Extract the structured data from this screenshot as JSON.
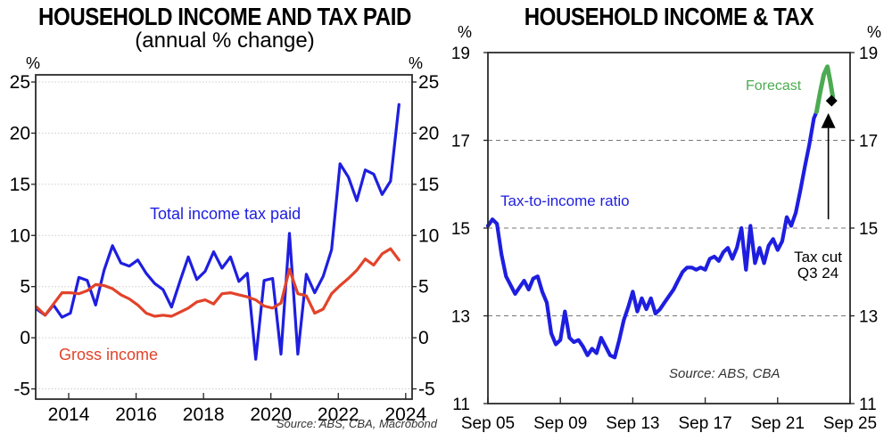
{
  "chart_data": [
    {
      "type": "line",
      "title": "HOUSEHOLD INCOME AND TAX PAID",
      "subtitle": "(annual % change)",
      "unit_label": "%",
      "source": "Source: ABS, CBA, Macrobond",
      "grid": "dotted",
      "legend_position": "in-plot-labels",
      "xlim": [
        2013.02,
        2024.19
      ],
      "ylim": [
        -6,
        25.7
      ],
      "yticks": [
        25,
        20,
        15,
        10,
        5,
        0,
        -5
      ],
      "grid_values": [
        25,
        20,
        15,
        10,
        5,
        0,
        -5
      ],
      "xticks": {
        "values": [
          2014,
          2016,
          2018,
          2020,
          2022,
          2024
        ],
        "labels": [
          "2014",
          "2016",
          "2018",
          "2020",
          "2022",
          "2024"
        ]
      },
      "x": [
        2013.05,
        2013.3,
        2013.55,
        2013.8,
        2014.05,
        2014.3,
        2014.55,
        2014.8,
        2015.05,
        2015.3,
        2015.55,
        2015.8,
        2016.05,
        2016.3,
        2016.55,
        2016.8,
        2017.05,
        2017.3,
        2017.55,
        2017.8,
        2018.05,
        2018.3,
        2018.55,
        2018.8,
        2019.05,
        2019.3,
        2019.55,
        2019.8,
        2020.05,
        2020.3,
        2020.55,
        2020.8,
        2021.05,
        2021.3,
        2021.55,
        2021.8,
        2022.05,
        2022.3,
        2022.55,
        2022.8,
        2023.05,
        2023.3,
        2023.55,
        2023.8
      ],
      "series": [
        {
          "name": "Total income tax paid",
          "color": "#1e1ee0",
          "values": [
            2.8,
            2.2,
            3.2,
            2.0,
            2.4,
            5.9,
            5.6,
            3.2,
            6.6,
            9.0,
            7.3,
            7.0,
            7.6,
            6.3,
            5.3,
            4.7,
            3.0,
            5.5,
            7.9,
            5.7,
            6.5,
            8.4,
            6.8,
            7.9,
            5.5,
            6.3,
            -2.1,
            5.6,
            5.8,
            -1.6,
            10.2,
            -1.6,
            6.2,
            4.4,
            6.0,
            8.6,
            17.0,
            15.7,
            13.4,
            16.4,
            16.0,
            14.0,
            15.3,
            22.8
          ]
        },
        {
          "name": "Gross income",
          "color": "#e2432a",
          "values": [
            3.0,
            2.2,
            3.3,
            4.4,
            4.4,
            4.3,
            4.6,
            5.2,
            5.1,
            4.8,
            4.2,
            3.8,
            3.2,
            2.4,
            2.1,
            2.2,
            2.1,
            2.5,
            2.9,
            3.5,
            3.7,
            3.3,
            4.3,
            4.4,
            4.2,
            4.0,
            3.7,
            3.1,
            2.9,
            3.4,
            6.7,
            4.3,
            4.1,
            2.4,
            2.8,
            4.3,
            5.1,
            5.8,
            6.6,
            7.7,
            7.1,
            8.2,
            8.7,
            7.6
          ]
        }
      ]
    },
    {
      "type": "line",
      "title": "HOUSEHOLD INCOME & TAX",
      "unit_label": "%",
      "source": "Source: ABS, CBA",
      "grid": "dashed",
      "legend_position": "in-plot-labels",
      "xlim": [
        2005.75,
        2025.75
      ],
      "ylim": [
        11,
        19
      ],
      "yticks": [
        19,
        17,
        15,
        13,
        11
      ],
      "grid_values": [
        17,
        15,
        13
      ],
      "xticks": {
        "values": [
          2005.75,
          2009.75,
          2013.75,
          2017.75,
          2021.75,
          2025.75
        ],
        "labels": [
          "Sep 05",
          "Sep 09",
          "Sep 13",
          "Sep 17",
          "Sep 21",
          "Sep 25"
        ]
      },
      "series": [
        {
          "name": "Tax-to-income ratio",
          "color": "#1e1ee0",
          "x": [
            2005.75,
            2006,
            2006.25,
            2006.5,
            2006.75,
            2007,
            2007.25,
            2007.5,
            2007.75,
            2008,
            2008.25,
            2008.5,
            2008.75,
            2009,
            2009.25,
            2009.5,
            2009.75,
            2010,
            2010.25,
            2010.5,
            2010.75,
            2011,
            2011.25,
            2011.5,
            2011.75,
            2012,
            2012.25,
            2012.5,
            2012.75,
            2013,
            2013.25,
            2013.5,
            2013.75,
            2014,
            2014.25,
            2014.5,
            2014.75,
            2015,
            2015.25,
            2015.5,
            2015.75,
            2016,
            2016.25,
            2016.5,
            2016.75,
            2017,
            2017.25,
            2017.5,
            2017.75,
            2018,
            2018.25,
            2018.5,
            2018.75,
            2019,
            2019.25,
            2019.5,
            2019.75,
            2020,
            2020.25,
            2020.5,
            2020.75,
            2021,
            2021.25,
            2021.5,
            2021.75,
            2022,
            2022.25,
            2022.5,
            2022.75,
            2023,
            2023.25,
            2023.5,
            2023.75,
            2023.9
          ],
          "values": [
            15.05,
            15.2,
            15.1,
            14.4,
            13.9,
            13.7,
            13.5,
            13.65,
            13.8,
            13.6,
            13.85,
            13.9,
            13.55,
            13.3,
            12.6,
            12.35,
            12.45,
            13.1,
            12.5,
            12.4,
            12.45,
            12.3,
            12.1,
            12.25,
            12.15,
            12.5,
            12.3,
            12.1,
            12.05,
            12.45,
            12.9,
            13.2,
            13.55,
            13.1,
            13.4,
            13.15,
            13.4,
            13.05,
            13.15,
            13.3,
            13.45,
            13.6,
            13.8,
            14.0,
            14.1,
            14.1,
            14.05,
            14.1,
            14.05,
            14.3,
            14.35,
            14.25,
            14.45,
            14.55,
            14.3,
            14.55,
            15.0,
            14.05,
            15.05,
            14.2,
            14.55,
            14.2,
            14.6,
            14.75,
            14.5,
            14.7,
            15.25,
            15.05,
            15.35,
            15.85,
            16.4,
            16.9,
            17.5,
            17.65
          ]
        },
        {
          "name": "Forecast",
          "color": "#4cab52",
          "x": [
            2023.9,
            2024.1,
            2024.3,
            2024.5,
            2024.65,
            2024.8
          ],
          "values": [
            17.65,
            18.1,
            18.5,
            18.68,
            18.35,
            17.98
          ]
        }
      ],
      "annotations": {
        "tax_cut_line1": "Tax cut",
        "tax_cut_line2": "Q3 24",
        "marker": {
          "x": 2024.73,
          "y": 17.9
        },
        "arrow": {
          "x": 2024.55,
          "y_start": 15.2,
          "y_end": 17.28,
          "y_tip": 17.62
        }
      }
    }
  ]
}
